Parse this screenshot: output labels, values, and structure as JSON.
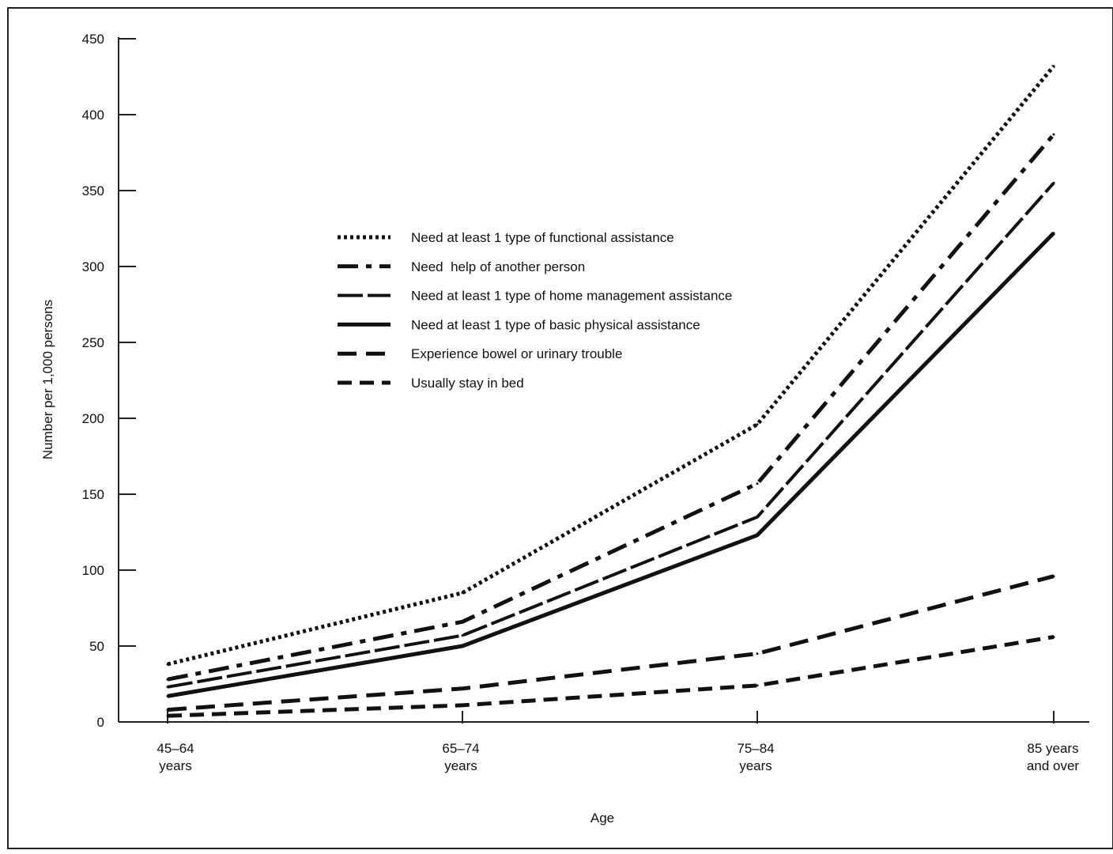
{
  "chart_data": {
    "type": "line",
    "xlabel": "Age",
    "ylabel": "Number per 1,000 persons",
    "ylim": [
      0,
      450
    ],
    "yticks": [
      0,
      50,
      100,
      150,
      200,
      250,
      300,
      350,
      400,
      450
    ],
    "categories": [
      [
        "45–64",
        "years"
      ],
      [
        "65–74",
        "years"
      ],
      [
        "75–84",
        "years"
      ],
      [
        "85 years",
        "and over"
      ]
    ],
    "grid": false,
    "legend_position": "upper-center",
    "series": [
      {
        "name": "Need at least 1 type of functional assistance",
        "style": "dotted",
        "values": [
          38,
          85,
          196,
          432
        ]
      },
      {
        "name": "Need  help of another person",
        "style": "dash-dot",
        "values": [
          28,
          66,
          157,
          387
        ]
      },
      {
        "name": "Need at least 1 type of home management assistance",
        "style": "long-dash",
        "values": [
          23,
          57,
          135,
          355
        ]
      },
      {
        "name": "Need at least 1 type of basic physical assistance",
        "style": "solid",
        "values": [
          17,
          50,
          123,
          322
        ]
      },
      {
        "name": "Experience bowel or urinary trouble",
        "style": "dashed",
        "values": [
          8,
          22,
          45,
          96
        ]
      },
      {
        "name": "Usually stay in bed",
        "style": "short-dash",
        "values": [
          4,
          11,
          24,
          56
        ]
      }
    ],
    "colors": {
      "line": "#111111",
      "frame": "#222222",
      "background": "#ffffff"
    }
  }
}
